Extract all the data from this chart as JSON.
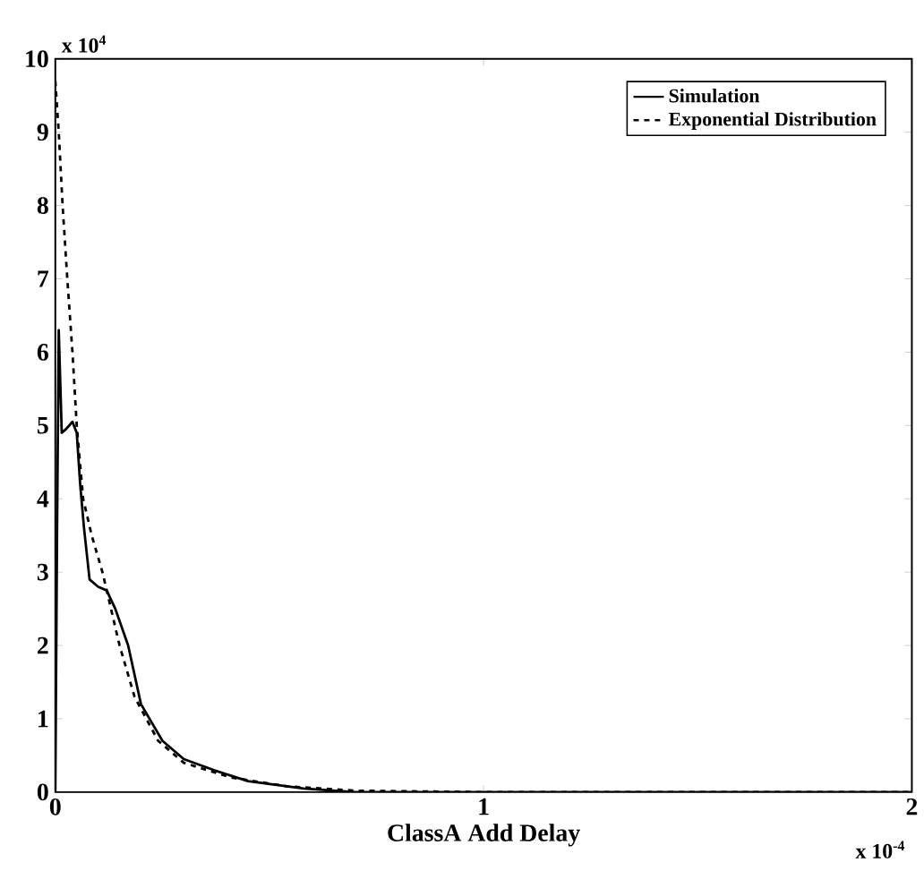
{
  "chart_data": {
    "type": "line",
    "xlabel": "ClassA Add Delay",
    "xlim": [
      0,
      2
    ],
    "ylim": [
      0,
      10
    ],
    "xticks": [
      0,
      1,
      2
    ],
    "yticks": [
      0,
      1,
      2,
      3,
      4,
      5,
      6,
      7,
      8,
      9,
      10
    ],
    "annotations": [
      "x 10$^{4}$",
      "x 10$^{-4}$"
    ],
    "legend": "top right",
    "grid": false,
    "marker": "none",
    "series": [
      {
        "name": "Simulation",
        "color": "#000000",
        "line_style": "solid",
        "x": [
          0,
          0.004,
          0.008,
          0.012,
          0.015,
          0.025,
          0.04,
          0.05,
          0.058,
          0.067,
          0.08,
          0.1,
          0.12,
          0.14,
          0.17,
          0.2,
          0.25,
          0.3,
          0.37,
          0.45,
          0.58,
          0.7,
          1.0,
          1.5,
          2.0
        ],
        "values": [
          0,
          3.5,
          6.3,
          5.5,
          4.9,
          4.95,
          5.05,
          4.9,
          4.2,
          3.6,
          2.9,
          2.8,
          2.75,
          2.5,
          2.0,
          1.2,
          0.7,
          0.45,
          0.3,
          0.15,
          0.05,
          0,
          0,
          0,
          0
        ]
      },
      {
        "name": "Exponential Distribution",
        "color": "#000000",
        "line_style": "dashed",
        "x": [
          0,
          0.008,
          0.017,
          0.028,
          0.04,
          0.05,
          0.065,
          0.085,
          0.11,
          0.15,
          0.185,
          0.24,
          0.3,
          0.41,
          0.54,
          0.7,
          1.0,
          1.5,
          2.0
        ],
        "values": [
          9.7,
          9.0,
          8.0,
          7.0,
          6.0,
          5.0,
          4.0,
          3.5,
          3.0,
          2.0,
          1.3,
          0.7,
          0.4,
          0.2,
          0.08,
          0.02,
          0,
          0,
          0
        ]
      }
    ]
  }
}
